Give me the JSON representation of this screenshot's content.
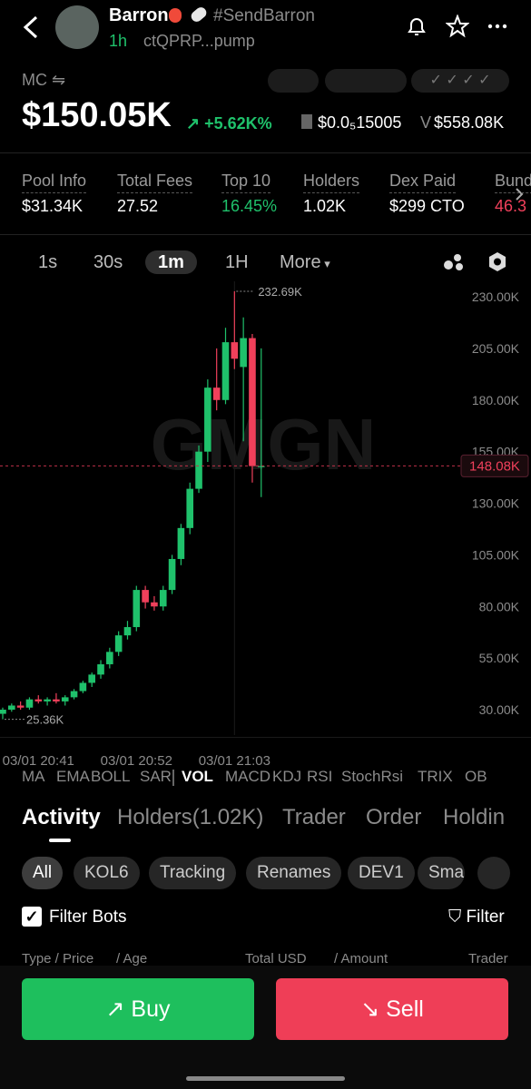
{
  "header": {
    "name": "Barron",
    "tag": "#SendBarron",
    "age": "1h",
    "address": "ctQPRP...pump"
  },
  "market": {
    "label": "MC",
    "value": "$150.05K",
    "change": "+5.62K%",
    "price": "$0.0₅15005",
    "volume_label": "V",
    "volume": "$558.08K"
  },
  "stats": [
    {
      "label": "Pool Info",
      "value": "$31.34K"
    },
    {
      "label": "Total Fees",
      "value": "27.52"
    },
    {
      "label": "Top 10",
      "value": "16.45%"
    },
    {
      "label": "Holders",
      "value": "1.02K"
    },
    {
      "label": "Dex Paid",
      "value": "$299 CTO"
    },
    {
      "label": "Bund",
      "value": "46.3"
    }
  ],
  "timeframes": [
    "1s",
    "30s",
    "1m",
    "1H",
    "More"
  ],
  "chart": {
    "type": "candlestick",
    "watermark": "GMGN",
    "up_color": "#1fc16b",
    "down_color": "#f0405b",
    "ylim": [
      17.7,
      237.5
    ],
    "yticks": [
      {
        "value": 230,
        "label": "230.00K"
      },
      {
        "value": 205,
        "label": "205.00K"
      },
      {
        "value": 180,
        "label": "180.00K"
      },
      {
        "value": 155,
        "label": "155.00K"
      },
      {
        "value": 130,
        "label": "130.00K"
      },
      {
        "value": 105,
        "label": "105.00K"
      },
      {
        "value": 80,
        "label": "80.00K"
      },
      {
        "value": 55,
        "label": "55.00K"
      },
      {
        "value": 30,
        "label": "30.00K"
      }
    ],
    "current": {
      "value": 148.08,
      "label": "148.08K"
    },
    "high_label": {
      "value": 232.69,
      "label": "232.69K"
    },
    "low_label": {
      "value": 25.36,
      "label": "25.36K"
    },
    "categories": [
      null,
      null,
      null,
      null,
      "03/01 20:41",
      null,
      null,
      null,
      null,
      null,
      null,
      null,
      null,
      null,
      null,
      "03/01 20:52",
      null,
      null,
      null,
      null,
      null,
      null,
      null,
      null,
      null,
      null,
      "03/01 21:03",
      null,
      null,
      null
    ],
    "candles": [
      {
        "open": 28,
        "high": 31,
        "low": 25.36,
        "close": 30
      },
      {
        "open": 30,
        "high": 33,
        "low": 29,
        "close": 32
      },
      {
        "open": 32,
        "high": 34,
        "low": 30,
        "close": 31
      },
      {
        "open": 31,
        "high": 36,
        "low": 30,
        "close": 35
      },
      {
        "open": 35,
        "high": 37,
        "low": 33,
        "close": 34
      },
      {
        "open": 34,
        "high": 36,
        "low": 32,
        "close": 35
      },
      {
        "open": 35,
        "high": 38,
        "low": 33,
        "close": 34
      },
      {
        "open": 34,
        "high": 37,
        "low": 32,
        "close": 36
      },
      {
        "open": 36,
        "high": 40,
        "low": 35,
        "close": 39
      },
      {
        "open": 39,
        "high": 44,
        "low": 38,
        "close": 43
      },
      {
        "open": 43,
        "high": 48,
        "low": 41,
        "close": 47
      },
      {
        "open": 47,
        "high": 54,
        "low": 45,
        "close": 52
      },
      {
        "open": 52,
        "high": 60,
        "low": 50,
        "close": 58
      },
      {
        "open": 58,
        "high": 68,
        "low": 56,
        "close": 66
      },
      {
        "open": 66,
        "high": 73,
        "low": 64,
        "close": 70
      },
      {
        "open": 70,
        "high": 90,
        "low": 68,
        "close": 88
      },
      {
        "open": 88,
        "high": 90,
        "low": 79,
        "close": 82
      },
      {
        "open": 82,
        "high": 85,
        "low": 78,
        "close": 80
      },
      {
        "open": 80,
        "high": 90,
        "low": 78,
        "close": 88
      },
      {
        "open": 88,
        "high": 105,
        "low": 86,
        "close": 103
      },
      {
        "open": 103,
        "high": 120,
        "low": 100,
        "close": 118
      },
      {
        "open": 118,
        "high": 140,
        "low": 115,
        "close": 137
      },
      {
        "open": 137,
        "high": 158,
        "low": 135,
        "close": 155
      },
      {
        "open": 155,
        "high": 190,
        "low": 150,
        "close": 186
      },
      {
        "open": 186,
        "high": 205,
        "low": 175,
        "close": 180
      },
      {
        "open": 180,
        "high": 215,
        "low": 178,
        "close": 208
      },
      {
        "open": 208,
        "high": 232.69,
        "low": 195,
        "close": 200
      },
      {
        "open": 196,
        "high": 220,
        "low": 160,
        "close": 210
      },
      {
        "open": 210,
        "high": 212,
        "low": 140,
        "close": 148
      },
      {
        "open": 148,
        "high": 205,
        "low": 133,
        "close": 148
      }
    ]
  },
  "indicators": [
    "MA",
    "EMA",
    "BOLL",
    "SAR",
    "VOL",
    "MACD",
    "KDJ",
    "RSI",
    "StochRsi",
    "TRIX",
    "OB"
  ],
  "tabs": [
    "Activity",
    "Holders(1.02K)",
    "Trader",
    "Order",
    "Holdin"
  ],
  "chips": [
    "All",
    "KOL6",
    "Tracking",
    "Renames",
    "DEV1",
    "Sma"
  ],
  "filters": {
    "bots": "Filter Bots",
    "filter": "Filter"
  },
  "columns": {
    "type": "Type / Price",
    "age": "/ Age",
    "total": "Total USD",
    "amount": "/ Amount",
    "trader": "Trader"
  },
  "buttons": {
    "buy": "Buy",
    "sell": "Sell"
  }
}
